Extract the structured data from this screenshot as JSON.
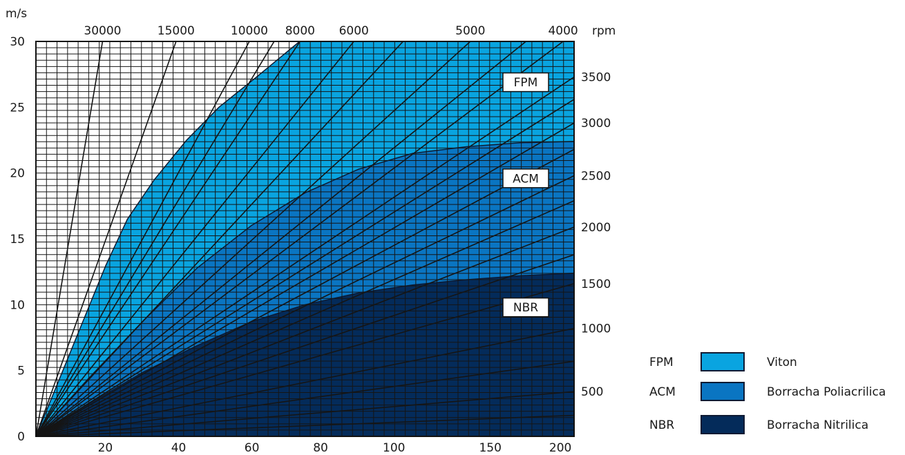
{
  "chart_data": {
    "type": "area",
    "ylabel": "m/s",
    "top_axis_label": "rpm",
    "ylim": [
      0,
      30
    ],
    "y_ticks": [
      "0",
      "5",
      "10",
      "15",
      "20",
      "25",
      "30"
    ],
    "x_ticks": [
      "20",
      "40",
      "60",
      "80",
      "100",
      "150",
      "200"
    ],
    "x_tick_fractions": [
      0.1289,
      0.2651,
      0.4013,
      0.5289,
      0.6653,
      0.8443,
      0.9745
    ],
    "top_rpm_ticks": [
      "30000",
      "15000",
      "10000",
      "8000",
      "6000",
      "5000",
      "4000"
    ],
    "top_rpm_fractions": [
      0.1238,
      0.2604,
      0.3966,
      0.4908,
      0.5908,
      0.8072,
      0.9796
    ],
    "right_rpm_ticks": [
      {
        "label": "3500",
        "y": 27.3
      },
      {
        "label": "3000",
        "y": 23.8
      },
      {
        "label": "2500",
        "y": 19.8
      },
      {
        "label": "2000",
        "y": 15.9
      },
      {
        "label": "1500",
        "y": 11.6
      },
      {
        "label": "1000",
        "y": 8.2
      },
      {
        "label": "500",
        "y": 3.4
      }
    ],
    "rpm_line_endpoints": [
      {
        "x": 0.1238,
        "y": 30
      },
      {
        "x": 0.2604,
        "y": 30
      },
      {
        "x": 0.3966,
        "y": 30
      },
      {
        "x": 0.4427,
        "y": 30
      },
      {
        "x": 0.4908,
        "y": 30
      },
      {
        "x": 0.5908,
        "y": 30
      },
      {
        "x": 0.6823,
        "y": 30
      },
      {
        "x": 0.8072,
        "y": 30
      },
      {
        "x": 0.9106,
        "y": 30
      },
      {
        "x": 0.9796,
        "y": 30
      },
      {
        "x": 1,
        "y": 27.3
      },
      {
        "x": 1,
        "y": 25.6
      },
      {
        "x": 1,
        "y": 23.8
      },
      {
        "x": 1,
        "y": 21.8
      },
      {
        "x": 1,
        "y": 19.8
      },
      {
        "x": 1,
        "y": 17.9
      },
      {
        "x": 1,
        "y": 15.9
      },
      {
        "x": 1,
        "y": 13.8
      },
      {
        "x": 1,
        "y": 11.6
      },
      {
        "x": 1,
        "y": 8.2
      },
      {
        "x": 1,
        "y": 5.7
      },
      {
        "x": 1,
        "y": 3.4
      },
      {
        "x": 1,
        "y": 1.6
      }
    ],
    "series": [
      {
        "name": "FPM",
        "label": "Viton",
        "color": "#09a4e0",
        "boundary": [
          [
            0,
            0
          ],
          [
            0.05,
            5
          ],
          [
            0.09,
            9
          ],
          [
            0.13,
            13
          ],
          [
            0.17,
            16.5
          ],
          [
            0.22,
            19.5
          ],
          [
            0.28,
            22.5
          ],
          [
            0.34,
            25
          ],
          [
            0.41,
            27.3
          ],
          [
            0.49,
            30
          ],
          [
            1,
            30
          ]
        ]
      },
      {
        "name": "ACM",
        "label": "Borracha Poliacrilica",
        "color": "#0a75c2",
        "boundary": [
          [
            0,
            0
          ],
          [
            0.1,
            4.5
          ],
          [
            0.2,
            8.8
          ],
          [
            0.3,
            12.8
          ],
          [
            0.4,
            16
          ],
          [
            0.5,
            18.5
          ],
          [
            0.6,
            20.3
          ],
          [
            0.7,
            21.5
          ],
          [
            0.8,
            22
          ],
          [
            0.9,
            22.3
          ],
          [
            1,
            22.4
          ]
        ]
      },
      {
        "name": "NBR",
        "label": "Borracha Nitrilica",
        "color": "#042b5a",
        "boundary": [
          [
            0,
            0
          ],
          [
            0.1,
            2.5
          ],
          [
            0.2,
            4.9
          ],
          [
            0.3,
            6.9
          ],
          [
            0.4,
            8.7
          ],
          [
            0.5,
            10
          ],
          [
            0.6,
            10.9
          ],
          [
            0.7,
            11.5
          ],
          [
            0.8,
            11.9
          ],
          [
            0.9,
            12.2
          ],
          [
            1,
            12.4
          ]
        ]
      }
    ],
    "region_labels": [
      {
        "text": "FPM",
        "y": 26.9
      },
      {
        "text": "ACM",
        "y": 19.6
      },
      {
        "text": "NBR",
        "y": 9.8
      }
    ]
  },
  "legend": [
    {
      "code": "FPM",
      "name": "Viton",
      "color": "#09a4e0"
    },
    {
      "code": "ACM",
      "name": "Borracha Poliacrilica",
      "color": "#0a75c2"
    },
    {
      "code": "NBR",
      "name": "Borracha Nitrilica",
      "color": "#042b5a"
    }
  ]
}
